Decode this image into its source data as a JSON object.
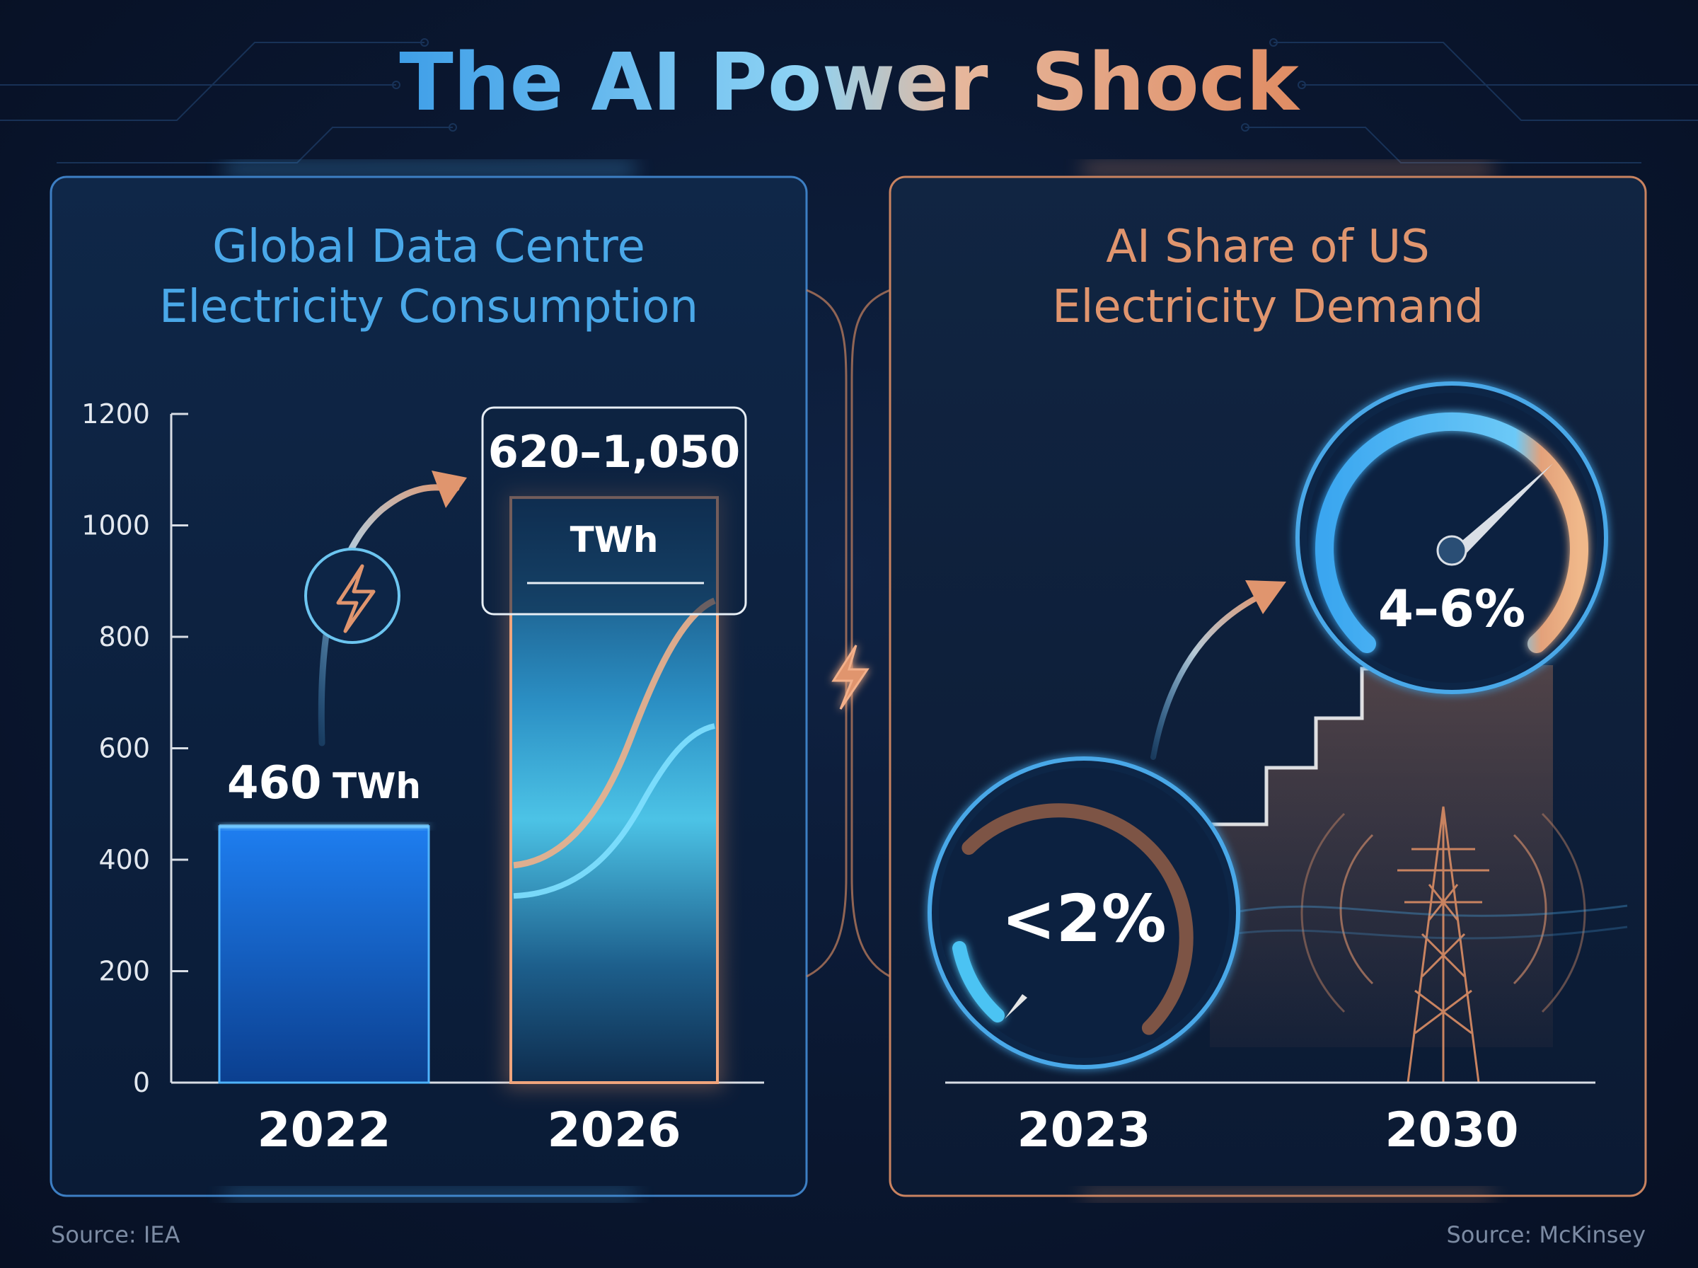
{
  "title": {
    "part1": "The AI Power",
    "part2": "Shock"
  },
  "colors": {
    "blue": "#4aa8e8",
    "orange": "#e0956e",
    "background": "#0a1730",
    "panel_blue_border": "#3d7fc4",
    "panel_orange_border": "#c98360"
  },
  "icons": [
    "lightning-icon",
    "gauge-icon",
    "power-tower-icon",
    "arrow-up-icon"
  ],
  "chart_data": [
    {
      "type": "bar",
      "title_line1": "Global Data Centre",
      "title_line2": "Electricity Consumption",
      "categories": [
        "2022",
        "2026"
      ],
      "values": [
        460,
        [
          620,
          1050
        ]
      ],
      "data_labels": [
        {
          "value": "460",
          "unit": "TWh"
        },
        {
          "value": "620–1,050",
          "unit": "TWh"
        }
      ],
      "ylim": [
        0,
        1200
      ],
      "yticks": [
        "0",
        "200",
        "400",
        "600",
        "800",
        "1000",
        "1200"
      ],
      "ytick_values": [
        0,
        200,
        400,
        600,
        800,
        1000,
        1200
      ],
      "source": "Source: IEA"
    },
    {
      "type": "gauge",
      "title_line1": "AI Share of US",
      "title_line2": "Electricity Demand",
      "categories": [
        "2023",
        "2030"
      ],
      "values": [
        "<2%",
        "4–6%"
      ],
      "value_numbers": [
        2,
        [
          4,
          6
        ]
      ],
      "source": "Source: McKinsey"
    }
  ]
}
